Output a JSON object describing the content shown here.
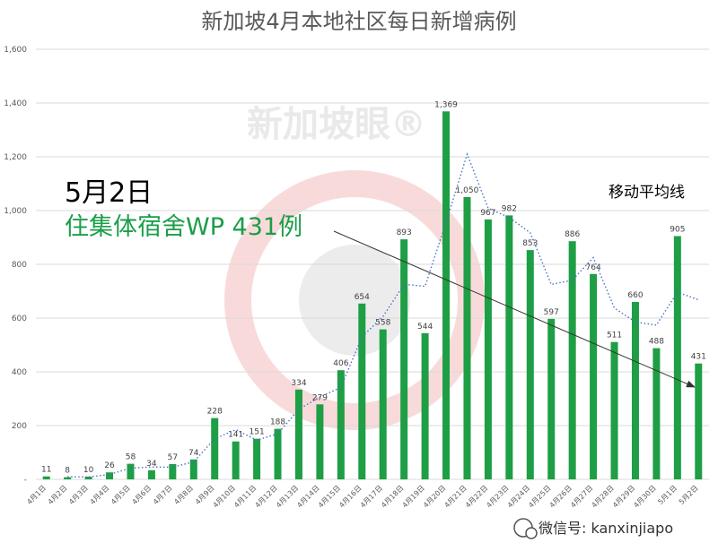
{
  "title": "新加坡4月本地社区每日新增病例",
  "watermark": "新加坡眼®",
  "annotation": {
    "date": "5月2日",
    "wp": "住集体宿舍WP 431例",
    "wp_color": "#1a9e4a"
  },
  "moving_average_label": "移动平均线",
  "wechat_label": "微信号: kanxinjiapo",
  "colors": {
    "bar": "#1e9e45",
    "moving_average": "#4a6fc4",
    "arrow": "#333333",
    "watermark_ring": "#f7d4d4"
  },
  "chart_data": {
    "type": "bar",
    "title": "新加坡4月本地社区每日新增病例",
    "xlabel": "",
    "ylabel": "",
    "ylim": [
      0,
      1600
    ],
    "yticks": [
      0,
      200,
      400,
      600,
      800,
      1000,
      1200,
      1400,
      1600
    ],
    "ytick_labels": [
      "-",
      "200",
      "400",
      "600",
      "800",
      "1,000",
      "1,200",
      "1,400",
      "1,600"
    ],
    "grid": true,
    "categories": [
      "4月1日",
      "4月2日",
      "4月3日",
      "4月4日",
      "4月5日",
      "4月6日",
      "4月7日",
      "4月8日",
      "4月9日",
      "4月10日",
      "4月11日",
      "4月12日",
      "4月13日",
      "4月14日",
      "4月15日",
      "4月16日",
      "4月17日",
      "4月18日",
      "4月19日",
      "4月20日",
      "4月21日",
      "4月22日",
      "4月23日",
      "4月24日",
      "4月25日",
      "4月26日",
      "4月27日",
      "4月28日",
      "4月29日",
      "4月30日",
      "5月1日",
      "5月2日"
    ],
    "values": [
      11,
      8,
      10,
      26,
      58,
      34,
      57,
      74,
      228,
      141,
      151,
      188,
      334,
      279,
      406,
      654,
      558,
      893,
      544,
      1369,
      1050,
      967,
      982,
      853,
      597,
      886,
      764,
      511,
      660,
      488,
      905,
      431
    ],
    "value_labels": [
      "11",
      "8",
      "10",
      "26",
      "58",
      "34",
      "57",
      "74",
      "228",
      "141",
      "151",
      "188",
      "334",
      "279",
      "406",
      "654",
      "558",
      "893",
      "544",
      "1,369",
      "1,050",
      "967",
      "982",
      "853",
      "597",
      "886",
      "764",
      "511",
      "660",
      "488",
      "905",
      "431"
    ],
    "moving_average": {
      "name": "移动平均线",
      "window": 2,
      "style": "dotted"
    }
  }
}
